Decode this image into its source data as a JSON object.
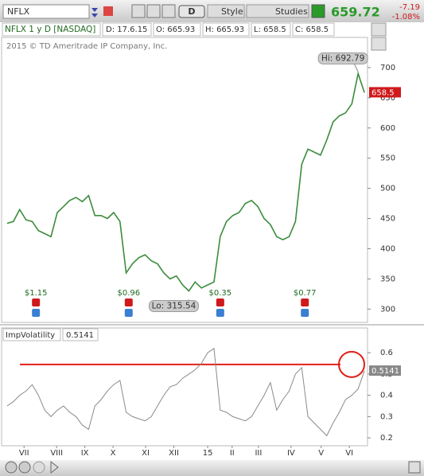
{
  "toolbar": {
    "symbol": "NFLX",
    "buttons": [
      "D",
      "Style",
      "Studies"
    ],
    "last": "659.72",
    "change": "-7.19",
    "change_pct": "-1.08%"
  },
  "header": {
    "title": "NFLX 1 y D [NASDAQ]",
    "date": "D: 17.6.15",
    "open": "O: 665.93",
    "high": "H: 665.93",
    "low": "L: 658.5",
    "close": "C: 658.5"
  },
  "chart_data": [
    {
      "type": "line",
      "watermark": "2015 © TD Ameritrade IP Company, Inc.",
      "color": "#3c8c3c",
      "values": [
        442,
        445,
        465,
        448,
        445,
        430,
        425,
        420,
        460,
        470,
        480,
        485,
        478,
        488,
        455,
        455,
        450,
        460,
        445,
        360,
        375,
        385,
        390,
        380,
        375,
        360,
        350,
        355,
        340,
        330,
        345,
        335,
        340,
        345,
        420,
        445,
        455,
        460,
        475,
        480,
        470,
        450,
        440,
        420,
        415,
        420,
        445,
        540,
        565,
        560,
        555,
        580,
        610,
        620,
        625,
        640,
        690,
        658.5
      ],
      "xlim": [
        -0.5,
        57.5
      ],
      "ylim": [
        278,
        750
      ],
      "yticks": [
        300,
        350,
        400,
        450,
        500,
        550,
        600,
        650,
        700
      ],
      "annotations": [
        {
          "text": "Hi: 692.79",
          "x": 56,
          "y": 692.79
        },
        {
          "text": "Lo: 315.54",
          "x": 29,
          "y": 315.54
        }
      ],
      "events": [
        {
          "x": 4.6,
          "label": "$1.15"
        },
        {
          "x": 19.4,
          "label": "$0.96"
        },
        {
          "x": 34,
          "label": "$0.35"
        },
        {
          "x": 47.5,
          "label": "$0.77"
        }
      ]
    },
    {
      "type": "line",
      "title": "ImpVolatility",
      "color": "#8a8a8a",
      "values": [
        0.35,
        0.37,
        0.4,
        0.42,
        0.45,
        0.4,
        0.33,
        0.3,
        0.33,
        0.35,
        0.32,
        0.3,
        0.26,
        0.24,
        0.35,
        0.38,
        0.42,
        0.45,
        0.47,
        0.32,
        0.3,
        0.29,
        0.28,
        0.3,
        0.35,
        0.4,
        0.44,
        0.45,
        0.48,
        0.5,
        0.52,
        0.55,
        0.6,
        0.62,
        0.33,
        0.32,
        0.3,
        0.29,
        0.28,
        0.3,
        0.35,
        0.4,
        0.46,
        0.33,
        0.38,
        0.42,
        0.5,
        0.53,
        0.3,
        0.27,
        0.24,
        0.21,
        0.27,
        0.32,
        0.38,
        0.4,
        0.43,
        0.5141
      ],
      "xlim": [
        -0.5,
        57.5
      ],
      "ylim": [
        0.163,
        0.649
      ],
      "yticks": [
        0.2,
        0.3,
        0.4,
        0.5,
        0.6
      ],
      "ref_line": 0.545,
      "ref_color": "#e0201a",
      "xticks": [
        {
          "value": 2.7,
          "label": "VII"
        },
        {
          "value": 7.9,
          "label": "VIII"
        },
        {
          "value": 12.4,
          "label": "IX"
        },
        {
          "value": 16.9,
          "label": "X"
        },
        {
          "value": 22.1,
          "label": "XI"
        },
        {
          "value": 26.6,
          "label": "XII"
        },
        {
          "value": 32,
          "label": "15"
        },
        {
          "value": 35.9,
          "label": "II"
        },
        {
          "value": 40.1,
          "label": "III"
        },
        {
          "value": 45.3,
          "label": "IV"
        },
        {
          "value": 50.1,
          "label": "V"
        },
        {
          "value": 54.6,
          "label": "VI"
        }
      ]
    }
  ]
}
